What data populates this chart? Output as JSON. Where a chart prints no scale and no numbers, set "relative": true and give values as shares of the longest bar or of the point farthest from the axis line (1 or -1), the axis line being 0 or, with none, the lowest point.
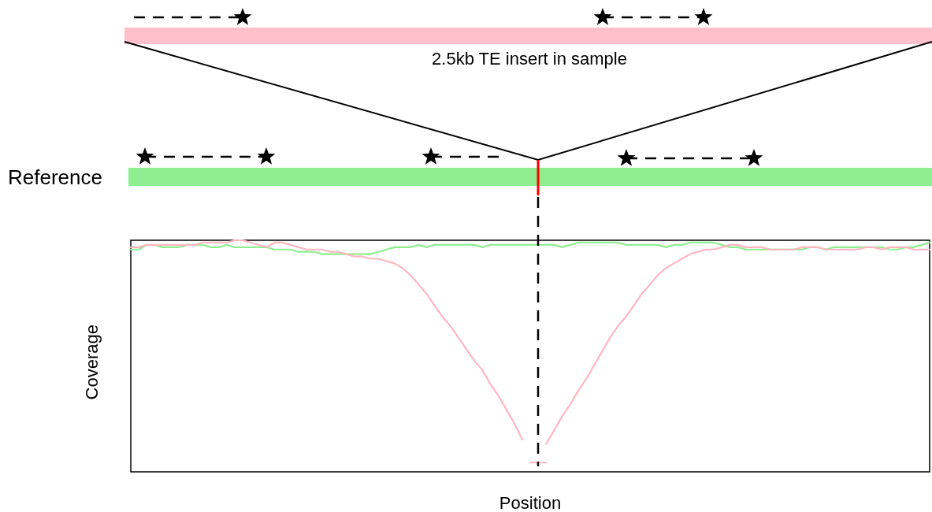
{
  "chart_data": {
    "type": "line",
    "relative": true,
    "xlabel": "Position",
    "ylabel": "Coverage",
    "annotations": [
      "2.5kb TE insert in sample",
      "Reference"
    ],
    "marker": "none",
    "grid": false,
    "categories": [
      null,
      null,
      null,
      null,
      null,
      null,
      null,
      null,
      null,
      null,
      null,
      null,
      null,
      null,
      null,
      null,
      null,
      null,
      null,
      null,
      null,
      null,
      null,
      null,
      null,
      null,
      null,
      null,
      null,
      null,
      null,
      null,
      null,
      null,
      null,
      null,
      null,
      null,
      null,
      null,
      null,
      null,
      null,
      null,
      null,
      null,
      null,
      null,
      null,
      null,
      null,
      null,
      null,
      null,
      null,
      null,
      null,
      null,
      null,
      null,
      null,
      null,
      null,
      null,
      null,
      null,
      null,
      null,
      null,
      null,
      null,
      null,
      null,
      null,
      null,
      null,
      null,
      null,
      null,
      null,
      null,
      null,
      null,
      null,
      null,
      null,
      null,
      null,
      null,
      null,
      null,
      null,
      null,
      null,
      null,
      null,
      null,
      null,
      null,
      null,
      null
    ],
    "series": [
      {
        "color": "#90ee90",
        "values": [
          0.96,
          0.96,
          0.98,
          0.98,
          0.97,
          0.97,
          0.97,
          0.98,
          0.98,
          0.98,
          0.97,
          0.97,
          0.98,
          0.97,
          0.97,
          0.97,
          0.97,
          0.97,
          0.96,
          0.96,
          0.96,
          0.95,
          0.95,
          0.95,
          0.94,
          0.94,
          0.94,
          0.94,
          0.94,
          0.94,
          0.94,
          0.95,
          0.96,
          0.97,
          0.97,
          0.97,
          0.98,
          0.97,
          0.98,
          0.98,
          0.98,
          0.98,
          0.98,
          0.98,
          0.97,
          0.98,
          0.98,
          0.98,
          0.98,
          0.98,
          0.98,
          0.98,
          0.98,
          0.98,
          0.97,
          0.98,
          0.99,
          0.99,
          0.99,
          0.99,
          0.99,
          0.99,
          0.98,
          0.98,
          0.98,
          0.98,
          0.98,
          0.97,
          0.98,
          0.98,
          0.99,
          0.99,
          0.99,
          0.99,
          0.98,
          0.97,
          0.97,
          0.96,
          0.96,
          0.96,
          0.96,
          0.96,
          0.96,
          0.96,
          0.96,
          0.97,
          0.97,
          0.96,
          0.97,
          0.97,
          0.97,
          0.97,
          0.97,
          0.97,
          0.97,
          0.96,
          0.96,
          0.97,
          0.97,
          0.98,
          0.99
        ]
      },
      {
        "color": "#ffb6c1",
        "values": [
          0.97,
          0.97,
          0.98,
          0.98,
          0.98,
          0.98,
          0.98,
          0.98,
          0.98,
          0.99,
          0.99,
          0.99,
          0.99,
          1.0,
          1.0,
          0.99,
          0.98,
          0.97,
          0.99,
          0.99,
          0.98,
          0.97,
          0.96,
          0.96,
          0.96,
          0.95,
          0.95,
          0.94,
          0.93,
          0.93,
          0.92,
          0.92,
          0.91,
          0.9,
          0.88,
          0.85,
          0.81,
          0.77,
          0.72,
          0.67,
          0.63,
          0.58,
          0.53,
          0.48,
          0.44,
          0.38,
          0.33,
          0.27,
          0.21,
          0.14,
          null,
          null,
          0.12,
          0.18,
          0.24,
          0.29,
          0.35,
          0.4,
          0.46,
          0.52,
          0.58,
          0.63,
          0.67,
          0.72,
          0.77,
          0.81,
          0.85,
          0.88,
          0.9,
          0.92,
          0.94,
          0.95,
          0.96,
          0.96,
          0.97,
          0.98,
          0.98,
          0.97,
          0.97,
          0.97,
          0.96,
          0.96,
          0.96,
          0.96,
          0.97,
          0.97,
          0.97,
          0.96,
          0.96,
          0.96,
          0.96,
          0.96,
          0.97,
          0.97,
          0.96,
          0.97,
          0.97,
          0.97,
          0.96,
          0.96,
          0.96
        ]
      },
      {
        "color": "#ffb6c1",
        "values": [
          null,
          null,
          null,
          null,
          null,
          null,
          null,
          null,
          null,
          null,
          null,
          null,
          null,
          null,
          null,
          null,
          null,
          null,
          null,
          null,
          null,
          null,
          null,
          null,
          null,
          null,
          null,
          null,
          null,
          null,
          null,
          null,
          null,
          null,
          null,
          null,
          null,
          null,
          null,
          null,
          null,
          null,
          null,
          null,
          null,
          null,
          null,
          null,
          null,
          null,
          0.04,
          0.04,
          0.04,
          null,
          null,
          null,
          null,
          null,
          null,
          null,
          null,
          null,
          null,
          null,
          null,
          null,
          null,
          null,
          null,
          null,
          null,
          null,
          null,
          null,
          null,
          null,
          null,
          null,
          null,
          null,
          null,
          null,
          null,
          null,
          null,
          null,
          null,
          null,
          null,
          null,
          null,
          null,
          null,
          null,
          null,
          null,
          null,
          null,
          null,
          null,
          null
        ]
      }
    ]
  }
}
